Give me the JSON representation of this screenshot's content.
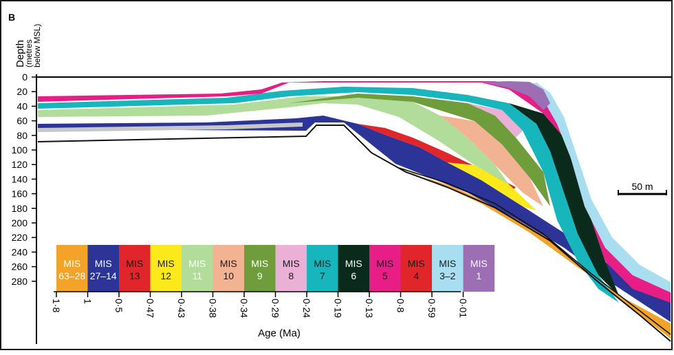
{
  "panel_label": "B",
  "depth_axis": {
    "title": "Depth",
    "subtitle_line1": "(metres",
    "subtitle_line2": "below MSL)",
    "ticks": [
      "0",
      "20",
      "40",
      "60",
      "80",
      "100",
      "120",
      "140",
      "160",
      "180",
      "200",
      "220",
      "240",
      "260",
      "280"
    ]
  },
  "scale_bar": {
    "label": "50 m"
  },
  "legend": {
    "items": [
      {
        "line1": "MIS",
        "line2": "63–28",
        "color": "#f3a32a",
        "text_color": "#ffffff"
      },
      {
        "line1": "MIS",
        "line2": "27–14",
        "color": "#2c3597",
        "text_color": "#ffffff"
      },
      {
        "line1": "MIS",
        "line2": "13",
        "color": "#e0262b",
        "text_color": "#1a1a1a"
      },
      {
        "line1": "MIS",
        "line2": "12",
        "color": "#fbe91c",
        "text_color": "#1a1a1a"
      },
      {
        "line1": "MIS",
        "line2": "11",
        "color": "#b2dc9a",
        "text_color": "#ffffff"
      },
      {
        "line1": "MIS",
        "line2": "10",
        "color": "#f2b393",
        "text_color": "#1a1a1a"
      },
      {
        "line1": "MIS",
        "line2": "9",
        "color": "#6f9d3b",
        "text_color": "#ffffff"
      },
      {
        "line1": "MIS",
        "line2": "8",
        "color": "#eab0d6",
        "text_color": "#1a1a1a"
      },
      {
        "line1": "MIS",
        "line2": "7",
        "color": "#17b5bc",
        "text_color": "#1a1a1a"
      },
      {
        "line1": "MIS",
        "line2": "6",
        "color": "#0a2b1b",
        "text_color": "#ffffff"
      },
      {
        "line1": "MIS",
        "line2": "5",
        "color": "#e71e85",
        "text_color": "#1a1a1a"
      },
      {
        "line1": "MIS",
        "line2": "4",
        "color": "#e0262b",
        "text_color": "#1a1a1a"
      },
      {
        "line1": "MIS",
        "line2": "3–2",
        "color": "#a8def0",
        "text_color": "#1a1a1a"
      },
      {
        "line1": "MIS",
        "line2": "1",
        "color": "#9c6fb5",
        "text_color": "#ffffff"
      }
    ]
  },
  "age_axis": {
    "title": "Age (Ma)",
    "ticks": [
      "1·8",
      "1",
      "0·5",
      "0·47",
      "0·43",
      "0·38",
      "0·34",
      "0·29",
      "0·24",
      "0·19",
      "0·13",
      "0·8",
      "0·59",
      "0·01"
    ]
  }
}
